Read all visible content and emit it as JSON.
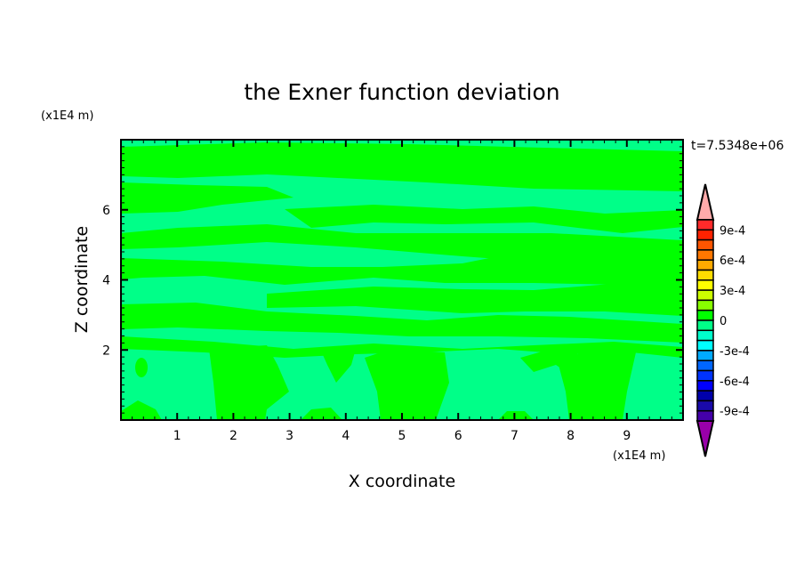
{
  "chart_data": {
    "type": "heatmap",
    "subtype": "filled-contour",
    "title": "the Exner function deviation",
    "xlabel": "X coordinate",
    "ylabel": "Z coordinate",
    "x_unit": "(x1E4 m)",
    "y_unit": "(x1E4 m)",
    "time_label": "t=7.5348e+06",
    "xlim": [
      0,
      10
    ],
    "ylim": [
      0,
      8
    ],
    "xticks": [
      1,
      2,
      3,
      4,
      5,
      6,
      7,
      8,
      9
    ],
    "yticks": [
      2,
      4,
      6
    ],
    "grid": false,
    "field_description_values": {
      "visible_range": [
        -0.0001,
        0.0001
      ],
      "background_level_range": [
        -0.0001,
        0
      ],
      "band_level_range": [
        0,
        0.0001
      ]
    },
    "colorbar": {
      "placement": "right",
      "levels_min": -0.001,
      "levels_max": 0.001,
      "level_step": 0.0001,
      "tick_labels": [
        "9e-4",
        "6e-4",
        "3e-4",
        "0",
        "-3e-4",
        "-6e-4",
        "-9e-4"
      ],
      "tick_values": [
        0.0009,
        0.0006,
        0.0003,
        0,
        -0.0003,
        -0.0006,
        -0.0009
      ],
      "over_color": "#ffaaaa",
      "under_color": "#9900aa",
      "colors_top_to_bottom": [
        "#ff2a2a",
        "#ff2200",
        "#ff5500",
        "#ff7700",
        "#ffaa00",
        "#ffdd00",
        "#ffff00",
        "#ccff00",
        "#88ff00",
        "#00ff00",
        "#00ff88",
        "#00ffcc",
        "#00ffff",
        "#00aaff",
        "#0066ff",
        "#0033ff",
        "#0000ff",
        "#0000aa",
        "#1a0aaa",
        "#4400aa"
      ]
    }
  }
}
